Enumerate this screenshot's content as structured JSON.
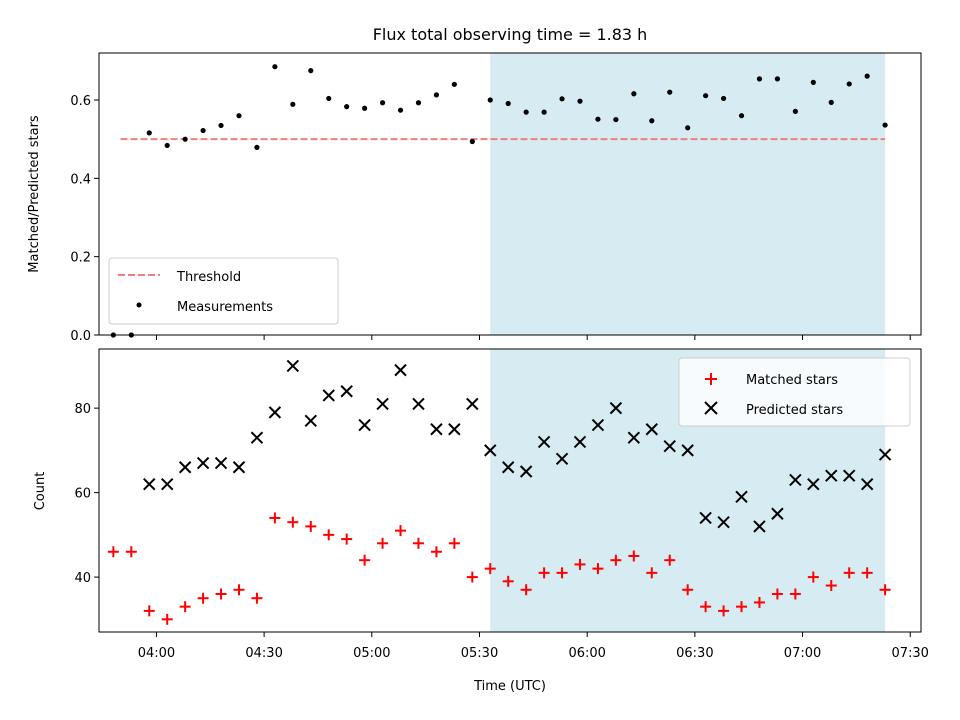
{
  "chart_data": [
    {
      "type": "scatter",
      "title": "Flux total observing time = 1.83 h",
      "xlabel": "",
      "ylabel": "Matched/Predicted stars",
      "ylim": [
        0,
        0.72
      ],
      "yticks": [
        "0.0",
        "0.2",
        "0.4",
        "0.6"
      ],
      "highlight_span": [
        "05:33",
        "07:23"
      ],
      "highlight_color": "#add8e6",
      "legend_position": "lower-left",
      "threshold": {
        "name": "Threshold",
        "value": 0.5,
        "x_range": [
          "03:50",
          "07:23"
        ],
        "color": "#f08080"
      },
      "series": [
        {
          "name": "Measurements",
          "color": "#000000",
          "marker": "dot",
          "x": [
            "03:48",
            "03:53",
            "03:58",
            "04:03",
            "04:08",
            "04:13",
            "04:18",
            "04:23",
            "04:28",
            "04:33",
            "04:38",
            "04:43",
            "04:48",
            "04:53",
            "04:58",
            "05:03",
            "05:08",
            "05:13",
            "05:18",
            "05:23",
            "05:28",
            "05:33",
            "05:38",
            "05:43",
            "05:48",
            "05:53",
            "05:58",
            "06:03",
            "06:08",
            "06:13",
            "06:18",
            "06:23",
            "06:28",
            "06:33",
            "06:38",
            "06:43",
            "06:48",
            "06:53",
            "06:58",
            "07:03",
            "07:08",
            "07:13",
            "07:18",
            "07:23"
          ],
          "y": [
            0.0,
            0.0,
            0.516,
            0.484,
            0.5,
            0.522,
            0.535,
            0.56,
            0.479,
            0.685,
            0.589,
            0.675,
            0.604,
            0.583,
            0.579,
            0.593,
            0.574,
            0.593,
            0.613,
            0.64,
            0.494,
            0.6,
            0.591,
            0.569,
            0.569,
            0.603,
            0.597,
            0.551,
            0.55,
            0.616,
            0.547,
            0.62,
            0.529,
            0.611,
            0.604,
            0.56,
            0.654,
            0.654,
            0.571,
            0.645,
            0.594,
            0.641,
            0.661,
            0.536
          ]
        }
      ]
    },
    {
      "type": "scatter",
      "title": "",
      "xlabel": "Time (UTC)",
      "ylabel": "Count",
      "ylim": [
        27,
        94
      ],
      "yticks": [
        "40",
        "60",
        "80"
      ],
      "xlim": [
        "03:44",
        "07:33"
      ],
      "xticks": [
        "04:00",
        "04:30",
        "05:00",
        "05:30",
        "06:00",
        "06:30",
        "07:00",
        "07:30"
      ],
      "highlight_span": [
        "05:33",
        "07:23"
      ],
      "highlight_color": "#add8e6",
      "legend_position": "top-right",
      "series": [
        {
          "name": "Matched stars",
          "color": "#ff0000",
          "marker": "plus",
          "x": [
            "03:48",
            "03:53",
            "03:58",
            "04:03",
            "04:08",
            "04:13",
            "04:18",
            "04:23",
            "04:28",
            "04:33",
            "04:38",
            "04:43",
            "04:48",
            "04:53",
            "04:58",
            "05:03",
            "05:08",
            "05:13",
            "05:18",
            "05:23",
            "05:28",
            "05:33",
            "05:38",
            "05:43",
            "05:48",
            "05:53",
            "05:58",
            "06:03",
            "06:08",
            "06:13",
            "06:18",
            "06:23",
            "06:28",
            "06:33",
            "06:38",
            "06:43",
            "06:48",
            "06:53",
            "06:58",
            "07:03",
            "07:08",
            "07:13",
            "07:18",
            "07:23"
          ],
          "y": [
            46,
            46,
            32,
            30,
            33,
            35,
            36,
            37,
            35,
            54,
            53,
            52,
            50,
            49,
            44,
            48,
            51,
            48,
            46,
            48,
            40,
            42,
            39,
            37,
            41,
            41,
            43,
            42,
            44,
            45,
            41,
            44,
            37,
            33,
            32,
            33,
            34,
            36,
            36,
            40,
            38,
            41,
            41,
            37
          ]
        },
        {
          "name": "Predicted stars",
          "color": "#000000",
          "marker": "x",
          "x": [
            "03:58",
            "04:03",
            "04:08",
            "04:13",
            "04:18",
            "04:23",
            "04:28",
            "04:33",
            "04:38",
            "04:43",
            "04:48",
            "04:53",
            "04:58",
            "05:03",
            "05:08",
            "05:13",
            "05:18",
            "05:23",
            "05:28",
            "05:33",
            "05:38",
            "05:43",
            "05:48",
            "05:53",
            "05:58",
            "06:03",
            "06:08",
            "06:13",
            "06:18",
            "06:23",
            "06:28",
            "06:33",
            "06:38",
            "06:43",
            "06:48",
            "06:53",
            "06:58",
            "07:03",
            "07:08",
            "07:13",
            "07:18",
            "07:23"
          ],
          "y": [
            62,
            62,
            66,
            67,
            67,
            66,
            73,
            79,
            90,
            77,
            83,
            84,
            76,
            81,
            89,
            81,
            75,
            75,
            81,
            70,
            66,
            65,
            72,
            68,
            72,
            76,
            80,
            73,
            75,
            71,
            70,
            54,
            53,
            59,
            52,
            55,
            63,
            62,
            64,
            64,
            62,
            69
          ]
        }
      ]
    }
  ]
}
